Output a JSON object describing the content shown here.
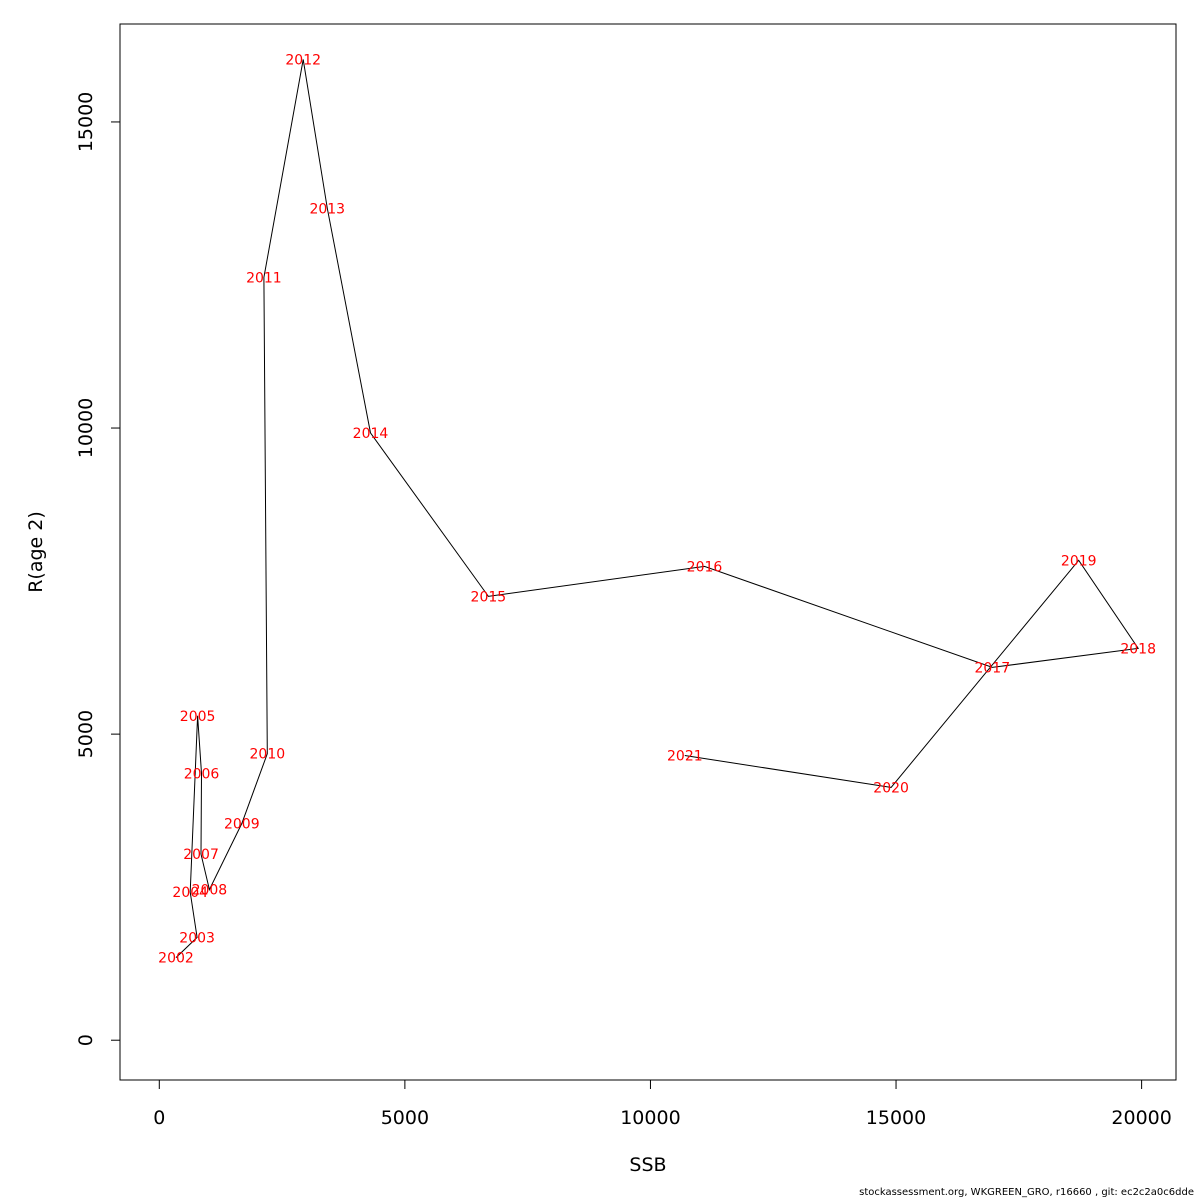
{
  "chart_data": {
    "type": "line",
    "xlabel": "SSB",
    "ylabel": "R(age 2)",
    "xlim": [
      -800,
      20700
    ],
    "ylim": [
      -650,
      16600
    ],
    "x_ticks": [
      0,
      5000,
      10000,
      15000,
      20000
    ],
    "y_ticks": [
      0,
      5000,
      10000,
      15000
    ],
    "x_tick_labels": [
      "0",
      "5000",
      "10000",
      "15000",
      "20000"
    ],
    "y_tick_labels": [
      "0",
      "5000",
      "10000",
      "15000"
    ],
    "line_color": "#000000",
    "label_color": "#ff0000",
    "grid": false,
    "points": [
      {
        "label": "2002",
        "x": 340,
        "y": 1350
      },
      {
        "label": "2003",
        "x": 770,
        "y": 1680
      },
      {
        "label": "2004",
        "x": 630,
        "y": 2420
      },
      {
        "label": "2005",
        "x": 780,
        "y": 5300
      },
      {
        "label": "2006",
        "x": 860,
        "y": 4360
      },
      {
        "label": "2007",
        "x": 850,
        "y": 3040
      },
      {
        "label": "2008",
        "x": 1020,
        "y": 2460
      },
      {
        "label": "2009",
        "x": 1680,
        "y": 3540
      },
      {
        "label": "2010",
        "x": 2200,
        "y": 4680
      },
      {
        "label": "2011",
        "x": 2130,
        "y": 12460
      },
      {
        "label": "2012",
        "x": 2930,
        "y": 16020
      },
      {
        "label": "2013",
        "x": 3420,
        "y": 13590
      },
      {
        "label": "2014",
        "x": 4300,
        "y": 9920
      },
      {
        "label": "2015",
        "x": 6700,
        "y": 7250
      },
      {
        "label": "2016",
        "x": 11100,
        "y": 7740
      },
      {
        "label": "2017",
        "x": 16960,
        "y": 6090
      },
      {
        "label": "2018",
        "x": 19930,
        "y": 6400
      },
      {
        "label": "2019",
        "x": 18720,
        "y": 7840
      },
      {
        "label": "2020",
        "x": 14900,
        "y": 4130
      },
      {
        "label": "2021",
        "x": 10700,
        "y": 4650
      }
    ]
  },
  "footer": {
    "text": "stockassessment.org, WKGREEN_GRO, r16660 , git: ec2c2a0c6dde"
  }
}
